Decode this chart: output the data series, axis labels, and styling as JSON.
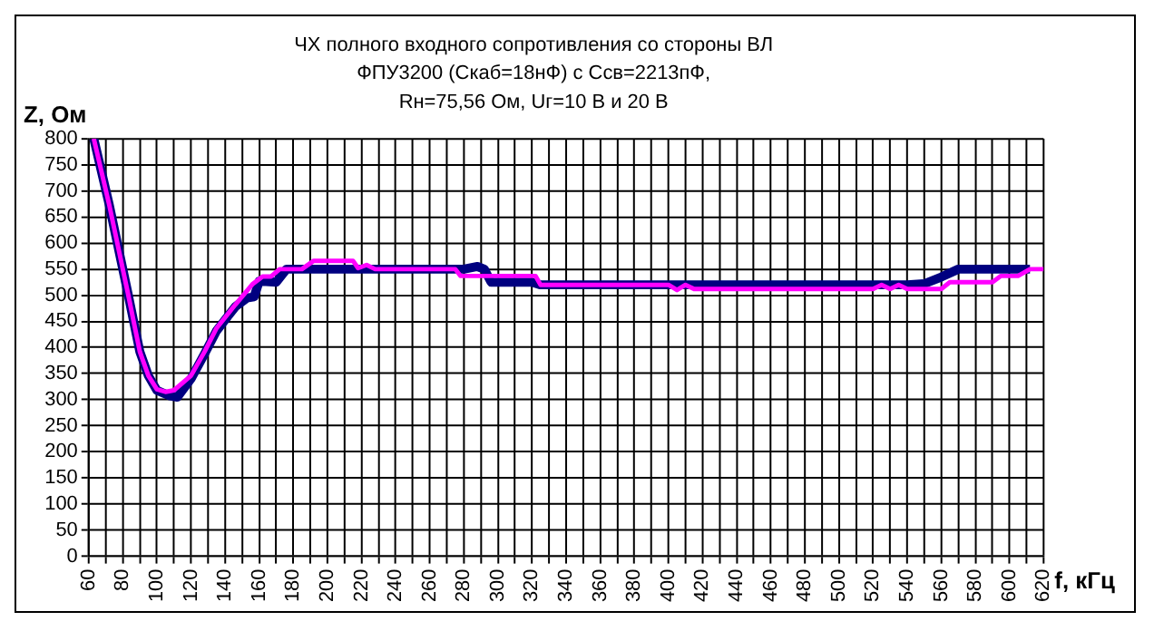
{
  "chart_data": {
    "type": "line",
    "title": "ЧХ полного входного сопротивления со стороны ВЛ\nФПУ3200 (Скаб=18нФ) с Ссв=2213пФ,\nRн=75,56 Ом, Uг=10 В и 20 В",
    "xlabel": "f, кГц",
    "ylabel": "Z, Ом",
    "xlim": [
      60,
      620
    ],
    "xticks": [
      60,
      {
        "value": 70,
        "label": null
      },
      80,
      {
        "value": 90,
        "label": null
      },
      100,
      {
        "value": 110,
        "label": null
      },
      120,
      {
        "value": 130,
        "label": null
      },
      140,
      {
        "value": 150,
        "label": null
      },
      160,
      {
        "value": 170,
        "label": null
      },
      180,
      {
        "value": 190,
        "label": null
      },
      200,
      {
        "value": 210,
        "label": null
      },
      220,
      {
        "value": 230,
        "label": null
      },
      240,
      {
        "value": 250,
        "label": null
      },
      260,
      {
        "value": 270,
        "label": null
      },
      280,
      {
        "value": 290,
        "label": null
      },
      300,
      {
        "value": 310,
        "label": null
      },
      320,
      {
        "value": 330,
        "label": null
      },
      340,
      {
        "value": 350,
        "label": null
      },
      360,
      {
        "value": 370,
        "label": null
      },
      380,
      {
        "value": 390,
        "label": null
      },
      400,
      {
        "value": 410,
        "label": null
      },
      420,
      {
        "value": 430,
        "label": null
      },
      440,
      {
        "value": 450,
        "label": null
      },
      460,
      {
        "value": 470,
        "label": null
      },
      480,
      {
        "value": 490,
        "label": null
      },
      500,
      {
        "value": 510,
        "label": null
      },
      520,
      {
        "value": 530,
        "label": null
      },
      540,
      {
        "value": 550,
        "label": null
      },
      560,
      {
        "value": 570,
        "label": null
      },
      580,
      {
        "value": 590,
        "label": null
      },
      600,
      {
        "value": 610,
        "label": null
      },
      620
    ],
    "ylim": [
      0,
      800
    ],
    "yticks": [
      0,
      50,
      100,
      150,
      200,
      250,
      300,
      350,
      400,
      450,
      500,
      550,
      600,
      650,
      700,
      750,
      800
    ],
    "grid": true,
    "legend": false,
    "marker": "none",
    "line_style": "solid",
    "series": [
      {
        "color": "#000080",
        "x": [
          63,
          72,
          83,
          90,
          95,
          100,
          107,
          112,
          120,
          128,
          135,
          146,
          153,
          157,
          160,
          170,
          176,
          185,
          215,
          230,
          280,
          288,
          292,
          296,
          320,
          325,
          400,
          410,
          540,
          550,
          560,
          570,
          580,
          600,
          612
        ],
        "values": [
          800,
          674,
          504,
          392,
          346,
          318,
          308,
          305,
          340,
          388,
          432,
          478,
          495,
          497,
          527,
          525,
          550,
          550,
          550,
          550,
          550,
          555,
          550,
          525,
          525,
          520,
          520,
          520,
          520,
          522,
          535,
          550,
          550,
          550,
          550
        ]
      },
      {
        "color": "#ff00ff",
        "x": [
          63,
          72,
          83,
          90,
          95,
          100,
          105,
          110,
          120,
          128,
          135,
          146,
          156,
          162,
          167,
          172,
          185,
          192,
          215,
          218,
          223,
          228,
          275,
          278,
          322,
          325,
          400,
          405,
          410,
          415,
          520,
          525,
          530,
          535,
          540,
          560,
          565,
          590,
          595,
          605,
          612,
          620
        ],
        "values": [
          800,
          674,
          504,
          392,
          346,
          320,
          315,
          318,
          346,
          392,
          437,
          482,
          521,
          536,
          536,
          550,
          550,
          566,
          566,
          552,
          558,
          550,
          550,
          537,
          537,
          520,
          520,
          510,
          520,
          512,
          512,
          520,
          512,
          520,
          512,
          512,
          525,
          525,
          537,
          537,
          550,
          550
        ]
      }
    ]
  }
}
